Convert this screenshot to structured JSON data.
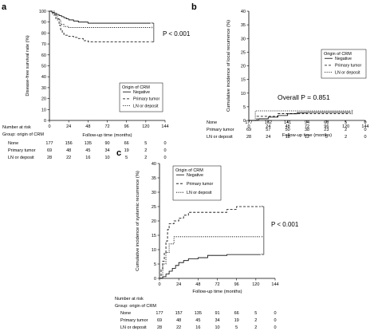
{
  "chart_data": [
    {
      "panel": "a",
      "type": "line",
      "ylabel": "Disease-free survival rate (%)",
      "xlabel": "Follow-up time (months)",
      "xlim": [
        0,
        144
      ],
      "ylim": [
        0,
        100
      ],
      "xticks": [
        0,
        24,
        48,
        72,
        96,
        120,
        144
      ],
      "yticks": [
        0,
        10,
        20,
        30,
        40,
        50,
        60,
        70,
        80,
        90,
        100
      ],
      "grid": false,
      "annotation": "P < 0.001",
      "legend_title": "Origin of CRM",
      "legend_placement": "bottom-right",
      "series": [
        {
          "name": "Negative",
          "dash": "solid",
          "points": [
            [
              0,
              100
            ],
            [
              3,
              99
            ],
            [
              6,
              98
            ],
            [
              9,
              97
            ],
            [
              12,
              96
            ],
            [
              15,
              95
            ],
            [
              18,
              94
            ],
            [
              21,
              93
            ],
            [
              24,
              92
            ],
            [
              30,
              91
            ],
            [
              36,
              90
            ],
            [
              48,
              89
            ],
            [
              60,
              89
            ],
            [
              72,
              89
            ],
            [
              84,
              89
            ],
            [
              96,
              89
            ],
            [
              108,
              89
            ],
            [
              120,
              89
            ],
            [
              126,
              89
            ]
          ]
        },
        {
          "name": "Primary tumor",
          "dash": "dash",
          "points": [
            [
              0,
              100
            ],
            [
              4,
              97
            ],
            [
              8,
              93
            ],
            [
              12,
              87
            ],
            [
              14,
              83
            ],
            [
              16,
              80
            ],
            [
              18,
              78
            ],
            [
              24,
              77
            ],
            [
              30,
              76
            ],
            [
              36,
              75
            ],
            [
              42,
              73
            ],
            [
              48,
              72
            ],
            [
              60,
              72
            ],
            [
              72,
              72
            ],
            [
              96,
              72
            ],
            [
              120,
              72
            ],
            [
              126,
              72
            ]
          ]
        },
        {
          "name": "LN or deposit",
          "dash": "dot",
          "points": [
            [
              0,
              100
            ],
            [
              6,
              96
            ],
            [
              10,
              92
            ],
            [
              14,
              88
            ],
            [
              18,
              86
            ],
            [
              24,
              85
            ],
            [
              48,
              85
            ],
            [
              72,
              85
            ],
            [
              96,
              85
            ],
            [
              120,
              85
            ],
            [
              126,
              85
            ]
          ]
        }
      ],
      "risk_table": {
        "title": "Number at risk",
        "group_label": "Group: origin of CRM",
        "rows": [
          {
            "label": "None",
            "values": [
              "177",
              "156",
              "135",
              "90",
              "66",
              "5",
              "0"
            ]
          },
          {
            "label": "Primary tumor",
            "values": [
              "69",
              "48",
              "45",
              "34",
              "19",
              "2",
              "0"
            ]
          },
          {
            "label": "LN or deposit",
            "values": [
              "28",
              "22",
              "16",
              "10",
              "5",
              "2",
              "0"
            ]
          }
        ]
      }
    },
    {
      "panel": "b",
      "type": "line",
      "ylabel": "Cumulative incidence of local recurrence (%)",
      "xlabel": "Follow-up time (months)",
      "xlim": [
        0,
        144
      ],
      "ylim": [
        0,
        40
      ],
      "xticks": [
        0,
        24,
        48,
        72,
        96,
        120,
        144
      ],
      "yticks": [
        0,
        5,
        10,
        15,
        20,
        25,
        30,
        35,
        40
      ],
      "grid": false,
      "annotation": "Overall P = 0.851",
      "legend_title": "Origin of CRM",
      "legend_placement": "top-right",
      "series": [
        {
          "name": "Negative",
          "dash": "solid",
          "points": [
            [
              0,
              0
            ],
            [
              12,
              0.6
            ],
            [
              24,
              1.2
            ],
            [
              36,
              1.8
            ],
            [
              48,
              2.4
            ],
            [
              60,
              2.9
            ],
            [
              72,
              3.0
            ],
            [
              96,
              3.0
            ],
            [
              120,
              3.0
            ],
            [
              126,
              3.0
            ]
          ]
        },
        {
          "name": "Primary tumor",
          "dash": "dash",
          "points": [
            [
              0,
              0
            ],
            [
              10,
              1.5
            ],
            [
              24,
              1.5
            ],
            [
              36,
              2.5
            ],
            [
              60,
              2.5
            ],
            [
              96,
              2.5
            ],
            [
              126,
              2.5
            ]
          ]
        },
        {
          "name": "LN or deposit",
          "dash": "dot",
          "points": [
            [
              0,
              0
            ],
            [
              8,
              3.5
            ],
            [
              24,
              3.5
            ],
            [
              72,
              3.5
            ],
            [
              126,
              3.5
            ]
          ]
        }
      ],
      "risk_table": {
        "title": "Number at risk",
        "group_label": "Group: origin of CRM",
        "rows": [
          {
            "label": "None",
            "values": [
              "177",
              "162",
              "141",
              "94",
              "68",
              "5",
              "0"
            ]
          },
          {
            "label": "Primary tumor",
            "values": [
              "69",
              "57",
              "50",
              "38",
              "23",
              "2",
              "0"
            ]
          },
          {
            "label": "LN or deposit",
            "values": [
              "28",
              "24",
              "18",
              "12",
              "5",
              "2",
              "0"
            ]
          }
        ]
      }
    },
    {
      "panel": "c",
      "type": "line",
      "ylabel": "Cumulative incidence of systemic recurrence (%)",
      "xlabel": "Follow-up time (months)",
      "xlim": [
        0,
        144
      ],
      "ylim": [
        0,
        40
      ],
      "xticks": [
        0,
        24,
        48,
        72,
        96,
        120,
        144
      ],
      "yticks": [
        0,
        5,
        10,
        15,
        20,
        25,
        30,
        35,
        40
      ],
      "grid": false,
      "annotation": "P < 0.001",
      "legend_title": "Origin of CRM",
      "legend_placement": "top-right",
      "series": [
        {
          "name": "Negative",
          "dash": "solid",
          "points": [
            [
              0,
              0
            ],
            [
              4,
              0.6
            ],
            [
              8,
              1.5
            ],
            [
              12,
              2.5
            ],
            [
              16,
              3.5
            ],
            [
              20,
              4.5
            ],
            [
              24,
              5.5
            ],
            [
              30,
              6.2
            ],
            [
              36,
              6.8
            ],
            [
              48,
              7.2
            ],
            [
              60,
              8.0
            ],
            [
              84,
              8.3
            ],
            [
              120,
              8.3
            ],
            [
              126,
              8.3
            ]
          ]
        },
        {
          "name": "Primary tumor",
          "dash": "dash",
          "points": [
            [
              0,
              0
            ],
            [
              2,
              3
            ],
            [
              4,
              6
            ],
            [
              6,
              9
            ],
            [
              8,
              13
            ],
            [
              10,
              17
            ],
            [
              12,
              19
            ],
            [
              18,
              20
            ],
            [
              24,
              21
            ],
            [
              30,
              22
            ],
            [
              36,
              23
            ],
            [
              72,
              23
            ],
            [
              84,
              24
            ],
            [
              96,
              25
            ],
            [
              108,
              25
            ],
            [
              126,
              25
            ]
          ]
        },
        {
          "name": "LN or deposit",
          "dash": "dot",
          "points": [
            [
              0,
              0
            ],
            [
              4,
              5
            ],
            [
              8,
              9
            ],
            [
              12,
              12
            ],
            [
              18,
              14.5
            ],
            [
              48,
              14.5
            ],
            [
              96,
              14.5
            ],
            [
              126,
              14.5
            ]
          ]
        }
      ],
      "risk_table": {
        "title": "Number at risk",
        "group_label": "Group: origin of CRM",
        "rows": [
          {
            "label": "None",
            "values": [
              "177",
              "157",
              "135",
              "91",
              "66",
              "5",
              "0"
            ]
          },
          {
            "label": "Primary tumor",
            "values": [
              "69",
              "48",
              "45",
              "34",
              "19",
              "2",
              "0"
            ]
          },
          {
            "label": "LN or deposit",
            "values": [
              "28",
              "22",
              "16",
              "10",
              "5",
              "2",
              "0"
            ]
          }
        ]
      }
    }
  ]
}
